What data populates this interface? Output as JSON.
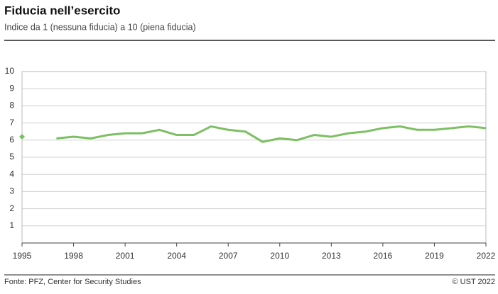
{
  "chart_data": {
    "type": "line",
    "title": "Fiducia nell’esercito",
    "subtitle": "Indice da 1 (nessuna fiducia) a 10 (piena fiducia)",
    "source": "Fonte: PFZ, Center for Security Studies",
    "copyright": "© UST 2022",
    "x": [
      1995,
      1996,
      1997,
      1998,
      1999,
      2000,
      2001,
      2002,
      2003,
      2004,
      2005,
      2006,
      2007,
      2008,
      2009,
      2010,
      2011,
      2012,
      2013,
      2014,
      2015,
      2016,
      2017,
      2018,
      2019,
      2020,
      2021,
      2022
    ],
    "series": [
      {
        "name": "Fiducia",
        "color": "#7cc063",
        "values": [
          6.2,
          null,
          6.1,
          6.2,
          6.1,
          6.3,
          6.4,
          6.4,
          6.6,
          6.3,
          6.3,
          6.8,
          6.6,
          6.5,
          5.9,
          6.1,
          6.0,
          6.3,
          6.2,
          6.4,
          6.5,
          6.7,
          6.8,
          6.6,
          6.6,
          6.7,
          6.8,
          6.7
        ]
      }
    ],
    "xlim": [
      1995,
      2022
    ],
    "xticks": [
      1995,
      1998,
      2001,
      2004,
      2007,
      2010,
      2013,
      2016,
      2019,
      2022
    ],
    "ylim": [
      0,
      10
    ],
    "yticks": [
      1,
      2,
      3,
      4,
      5,
      6,
      7,
      8,
      9,
      10
    ],
    "grid": true
  }
}
